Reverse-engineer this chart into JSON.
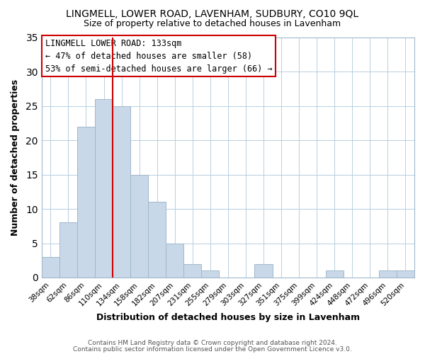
{
  "title": "LINGMELL, LOWER ROAD, LAVENHAM, SUDBURY, CO10 9QL",
  "subtitle": "Size of property relative to detached houses in Lavenham",
  "xlabel": "Distribution of detached houses by size in Lavenham",
  "ylabel": "Number of detached properties",
  "bar_labels": [
    "38sqm",
    "62sqm",
    "86sqm",
    "110sqm",
    "134sqm",
    "158sqm",
    "182sqm",
    "207sqm",
    "231sqm",
    "255sqm",
    "279sqm",
    "303sqm",
    "327sqm",
    "351sqm",
    "375sqm",
    "399sqm",
    "424sqm",
    "448sqm",
    "472sqm",
    "496sqm",
    "520sqm"
  ],
  "bar_heights": [
    3,
    8,
    22,
    26,
    25,
    15,
    11,
    5,
    2,
    1,
    0,
    0,
    2,
    0,
    0,
    0,
    1,
    0,
    0,
    1,
    1
  ],
  "bar_color": "#c8d8e8",
  "bar_edge_color": "#a0b8cc",
  "vline_color": "#cc0000",
  "annotation_title": "LINGMELL LOWER ROAD: 133sqm",
  "annotation_line1": "← 47% of detached houses are smaller (58)",
  "annotation_line2": "53% of semi-detached houses are larger (66) →",
  "ylim": [
    0,
    35
  ],
  "yticks": [
    0,
    5,
    10,
    15,
    20,
    25,
    30,
    35
  ],
  "footer1": "Contains HM Land Registry data © Crown copyright and database right 2024.",
  "footer2": "Contains public sector information licensed under the Open Government Licence v3.0."
}
